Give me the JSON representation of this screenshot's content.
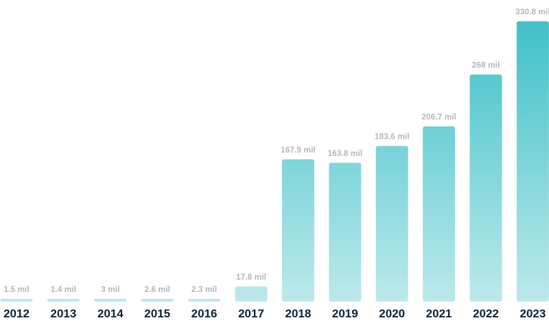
{
  "chart_data": {
    "type": "bar",
    "categories": [
      "2012",
      "2013",
      "2014",
      "2015",
      "2016",
      "2017",
      "2018",
      "2019",
      "2020",
      "2021",
      "2022",
      "2023"
    ],
    "values": [
      1.5,
      1.4,
      3,
      2.6,
      2.3,
      17.8,
      167.9,
      163.8,
      183.6,
      206.7,
      268,
      330.8
    ],
    "data_labels": [
      "1.5 mil",
      "1.4 mil",
      "3 mil",
      "2.6 mil",
      "2.3 mil",
      "17.8 mil",
      "167.9 mil",
      "163.8 mil",
      "183.6 mil",
      "206.7 mil",
      "268 mil",
      "330.8 mil"
    ],
    "title": "",
    "xlabel": "",
    "ylabel": "",
    "ylim": [
      0,
      330.8
    ],
    "grid": false,
    "legend": "none",
    "colors": {
      "bar_top": "#3fc1c8",
      "bar_bottom": "#bce9eb",
      "value_label": "#b3b7ba",
      "year_label": "#0b2233"
    }
  }
}
